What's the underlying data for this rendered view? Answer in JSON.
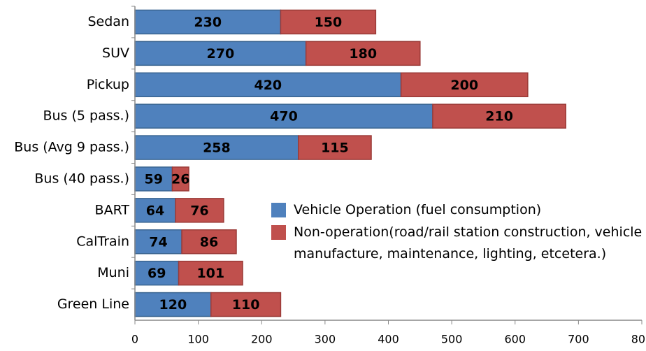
{
  "chart_data": {
    "type": "stacked-bar-horizontal",
    "categories": [
      "Sedan",
      "SUV",
      "Pickup",
      "Bus (5 pass.)",
      "Bus (Avg 9 pass.)",
      "Bus (40 pass.)",
      "BART",
      "CalTrain",
      "Muni",
      "Green Line"
    ],
    "series": [
      {
        "name": "Vehicle Operation (fuel consumption)",
        "color": "#4f81bd",
        "values": [
          230,
          270,
          420,
          470,
          258,
          59,
          64,
          74,
          69,
          120
        ]
      },
      {
        "name": "Non-operation(road/rail station construction, vehicle manufacture, maintenance, lighting, etcetera.)",
        "color": "#c0504d",
        "values": [
          150,
          180,
          200,
          210,
          115,
          26,
          76,
          86,
          101,
          110
        ]
      }
    ],
    "xlim": [
      0,
      800
    ],
    "xticks": [
      0,
      100,
      200,
      300,
      400,
      500,
      600,
      700,
      800
    ]
  }
}
